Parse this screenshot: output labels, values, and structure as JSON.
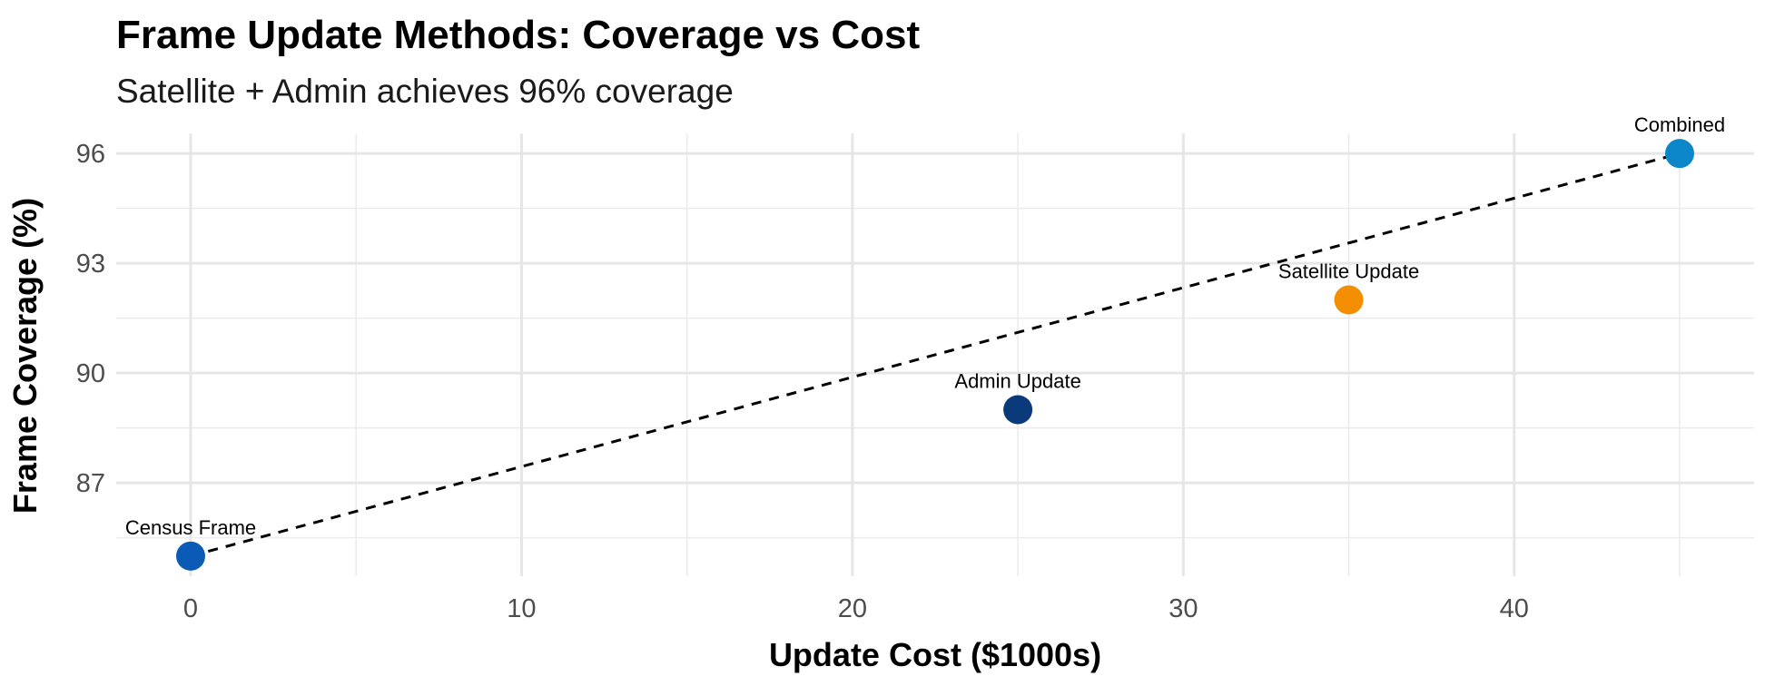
{
  "chart_data": {
    "type": "scatter",
    "title": "Frame Update Methods: Coverage vs Cost",
    "subtitle": "Satellite + Admin achieves 96% coverage",
    "xlabel": "Update Cost ($1000s)",
    "ylabel": "Frame Coverage (%)",
    "xlim": [
      -2.25,
      47.25
    ],
    "ylim": [
      84.45,
      96.55
    ],
    "x_ticks": [
      0,
      10,
      20,
      30,
      40
    ],
    "y_ticks": [
      87,
      90,
      93,
      96
    ],
    "grid": true,
    "legend": "none",
    "points": [
      {
        "label": "Census Frame",
        "x": 0,
        "y": 85,
        "color": "#0a5bb5"
      },
      {
        "label": "Admin Update",
        "x": 25,
        "y": 89,
        "color": "#0b3a7a"
      },
      {
        "label": "Satellite Update",
        "x": 35,
        "y": 92,
        "color": "#f28e00"
      },
      {
        "label": "Combined",
        "x": 45,
        "y": 96,
        "color": "#0a86c9"
      }
    ],
    "trend_line": {
      "style": "dashed",
      "color": "#000000",
      "x": [
        0,
        45
      ],
      "y": [
        85,
        96
      ]
    }
  }
}
